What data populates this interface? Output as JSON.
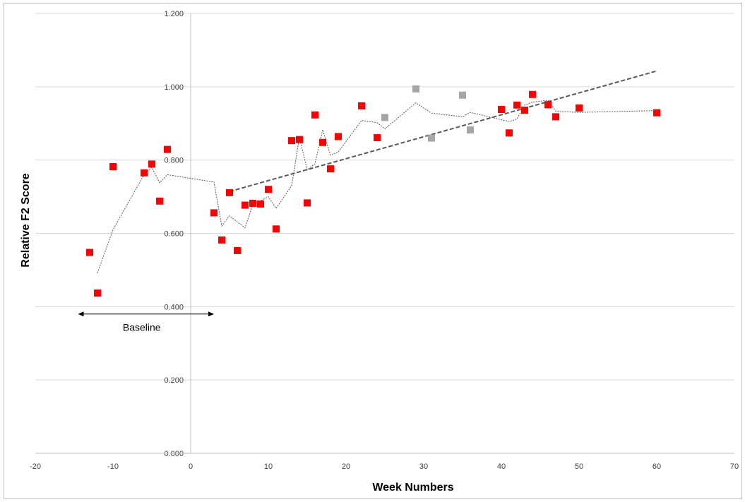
{
  "chart_data": {
    "type": "scatter",
    "xlabel": "Week Numbers",
    "ylabel": "Relative F2 Score",
    "xlim": [
      -20,
      70
    ],
    "ylim": [
      0,
      1.2
    ],
    "x_ticks": [
      "-20",
      "-10",
      "0",
      "10",
      "20",
      "30",
      "40",
      "50",
      "60",
      "70"
    ],
    "y_ticks": [
      "0.000",
      "0.200",
      "0.400",
      "0.600",
      "0.800",
      "1.000",
      "1.200"
    ],
    "grid": "horizontal",
    "annotation": {
      "text": "Baseline",
      "x_from": -14.5,
      "x_to": 3,
      "y": 0.38
    },
    "colors": {
      "series_a": "#ff0000",
      "series_b": "#a6a6a6",
      "lines": "#595959"
    },
    "series": [
      {
        "marker": "square",
        "color": "#ff0000",
        "points": [
          [
            -13,
            0.548
          ],
          [
            -12,
            0.437
          ],
          [
            -10,
            0.782
          ],
          [
            -6,
            0.765
          ],
          [
            -5,
            0.789
          ],
          [
            -4,
            0.688
          ],
          [
            -3,
            0.829
          ],
          [
            3,
            0.656
          ],
          [
            4,
            0.582
          ],
          [
            5,
            0.711
          ],
          [
            6,
            0.553
          ],
          [
            7,
            0.677
          ],
          [
            8,
            0.682
          ],
          [
            9,
            0.68
          ],
          [
            10,
            0.72
          ],
          [
            11,
            0.612
          ],
          [
            13,
            0.853
          ],
          [
            14,
            0.856
          ],
          [
            15,
            0.683
          ],
          [
            16,
            0.923
          ],
          [
            17,
            0.848
          ],
          [
            18,
            0.776
          ],
          [
            19,
            0.864
          ],
          [
            22,
            0.948
          ],
          [
            24,
            0.861
          ],
          [
            40,
            0.938
          ],
          [
            41,
            0.874
          ],
          [
            42,
            0.95
          ],
          [
            43,
            0.936
          ],
          [
            44,
            0.979
          ],
          [
            46,
            0.951
          ],
          [
            47,
            0.918
          ],
          [
            50,
            0.942
          ],
          [
            60,
            0.929
          ]
        ]
      },
      {
        "marker": "square",
        "color": "#a6a6a6",
        "points": [
          [
            25,
            0.916
          ],
          [
            29,
            0.994
          ],
          [
            31,
            0.86
          ],
          [
            35,
            0.977
          ],
          [
            36,
            0.882
          ]
        ]
      }
    ],
    "moving_average": [
      [
        -12,
        0.492
      ],
      [
        -10,
        0.61
      ],
      [
        -6,
        0.76
      ],
      [
        -5,
        0.78
      ],
      [
        -4,
        0.738
      ],
      [
        -3,
        0.76
      ],
      [
        3,
        0.74
      ],
      [
        4,
        0.62
      ],
      [
        5,
        0.648
      ],
      [
        7,
        0.615
      ],
      [
        8,
        0.678
      ],
      [
        10,
        0.7
      ],
      [
        11,
        0.668
      ],
      [
        13,
        0.73
      ],
      [
        14,
        0.862
      ],
      [
        15,
        0.773
      ],
      [
        16,
        0.79
      ],
      [
        17,
        0.883
      ],
      [
        18,
        0.813
      ],
      [
        19,
        0.822
      ],
      [
        22,
        0.908
      ],
      [
        24,
        0.902
      ],
      [
        25,
        0.885
      ],
      [
        29,
        0.956
      ],
      [
        31,
        0.928
      ],
      [
        35,
        0.918
      ],
      [
        36,
        0.93
      ],
      [
        40,
        0.91
      ],
      [
        41,
        0.905
      ],
      [
        42,
        0.912
      ],
      [
        43,
        0.95
      ],
      [
        44,
        0.958
      ],
      [
        46,
        0.963
      ],
      [
        47,
        0.933
      ],
      [
        50,
        0.93
      ],
      [
        60,
        0.935
      ]
    ],
    "trendline": [
      [
        5,
        0.714
      ],
      [
        60,
        1.043
      ]
    ]
  }
}
